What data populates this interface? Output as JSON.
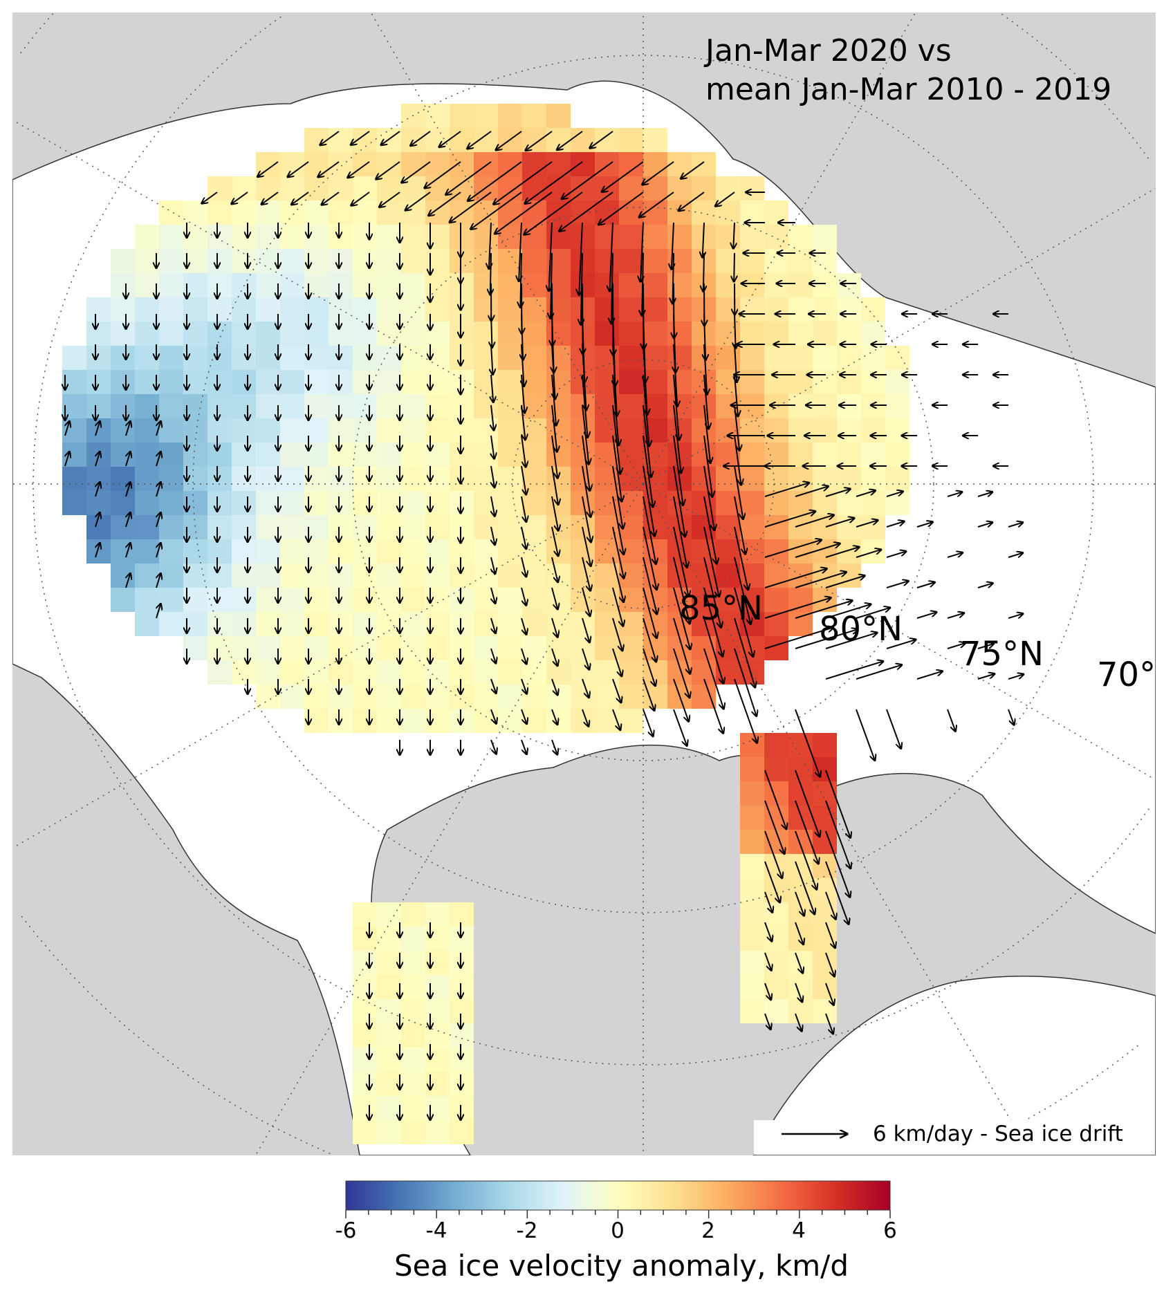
{
  "title": {
    "line1": "Jan-Mar 2020 vs",
    "line2": "mean Jan-Mar 2010 - 2019"
  },
  "latitude_labels": [
    "85°N",
    "80°N",
    "75°N",
    "70°"
  ],
  "legend": {
    "arrow_text": "6 km/day - Sea ice drift"
  },
  "colorbar": {
    "label": "Sea ice velocity anomaly, km/d",
    "range": [
      -6,
      6
    ],
    "ticks": [
      "-6",
      "-4",
      "-2",
      "0",
      "2",
      "4",
      "6"
    ],
    "colormap": "RdYlBu_r",
    "colors": [
      "#313695",
      "#4575b4",
      "#74add1",
      "#abd9e9",
      "#e0f3f8",
      "#ffffbf",
      "#fee090",
      "#fdae61",
      "#f46d43",
      "#d73027",
      "#a50026"
    ]
  },
  "map": {
    "land_color": "#d3d3d3",
    "ocean_color": "#ffffff",
    "graticule": "dotted"
  }
}
